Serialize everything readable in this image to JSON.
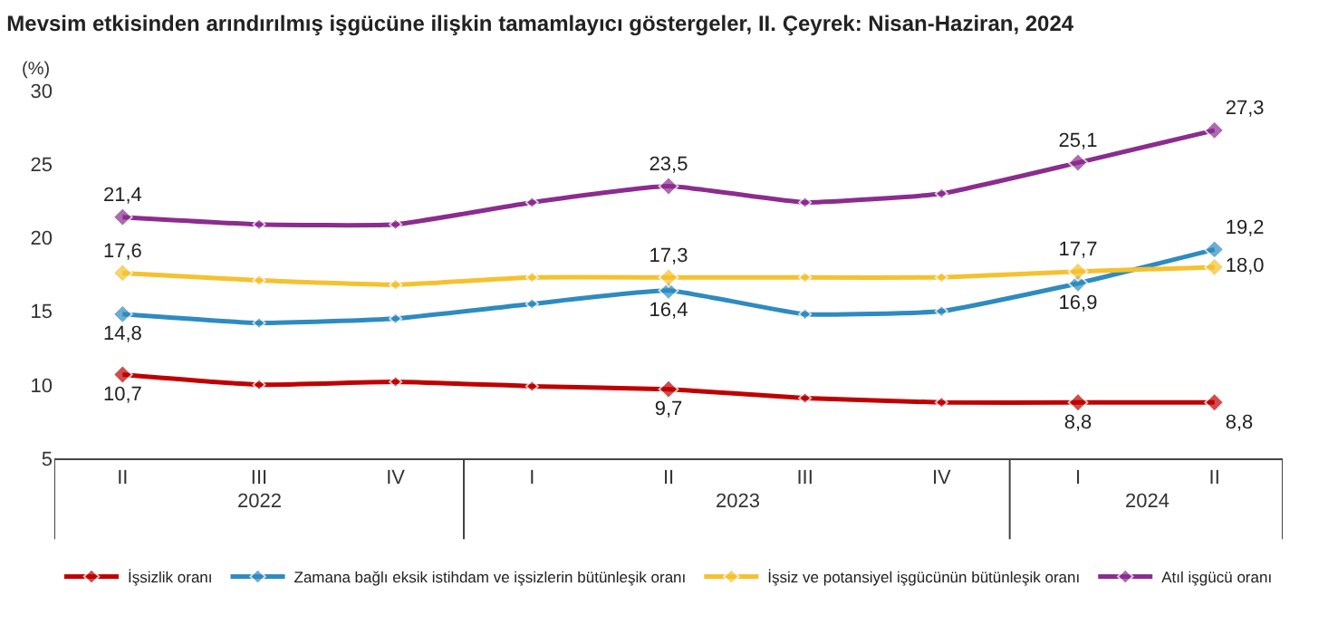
{
  "chart_data": {
    "type": "line",
    "title": "Mevsim etkisinden arındırılmış işgücüne ilişkin tamamlayıcı göstergeler, II. Çeyrek: Nisan-Haziran, 2024",
    "ylabel": "(%)",
    "categories": [
      "II",
      "III",
      "IV",
      "I",
      "II",
      "III",
      "IV",
      "I",
      "II"
    ],
    "annotations": [
      "2022",
      "2023",
      "2024"
    ],
    "ylim": [
      5,
      30
    ],
    "yticks": [
      5,
      10,
      15,
      20,
      25,
      30
    ],
    "legend": "bottom",
    "marker": "diamond",
    "line_style": "solid",
    "series": [
      {
        "name": "İşsizlik oranı",
        "color": "#c00000",
        "values": [
          10.7,
          10.0,
          10.2,
          9.9,
          9.7,
          9.1,
          8.8,
          8.8,
          8.8
        ],
        "value_labels": [
          "10,7",
          null,
          null,
          null,
          "9,7",
          null,
          null,
          "8,8",
          "8,8"
        ]
      },
      {
        "name": "Zamana bağlı eksik istihdam ve işsizlerin bütünleşik oranı",
        "color": "#2e8bc0",
        "values": [
          14.8,
          14.2,
          14.5,
          15.5,
          16.4,
          14.8,
          15.0,
          16.9,
          19.2
        ],
        "value_labels": [
          "14,8",
          null,
          null,
          null,
          "16,4",
          null,
          null,
          "16,9",
          "19,2"
        ]
      },
      {
        "name": "İşsiz ve potansiyel işgücünün bütünleşik oranı",
        "color": "#f5c12e",
        "values": [
          17.6,
          17.1,
          16.8,
          17.3,
          17.3,
          17.3,
          17.3,
          17.7,
          18.0
        ],
        "value_labels": [
          "17,6",
          null,
          null,
          null,
          "17,3",
          null,
          null,
          "17,7",
          "18,0"
        ]
      },
      {
        "name": "Atıl işgücü oranı",
        "color": "#8b2c8f",
        "values": [
          21.4,
          20.9,
          20.9,
          22.4,
          23.5,
          22.4,
          23.0,
          25.1,
          27.3
        ],
        "value_labels": [
          "21,4",
          null,
          null,
          null,
          "23,5",
          null,
          null,
          "25,1",
          "27,3"
        ]
      }
    ]
  }
}
